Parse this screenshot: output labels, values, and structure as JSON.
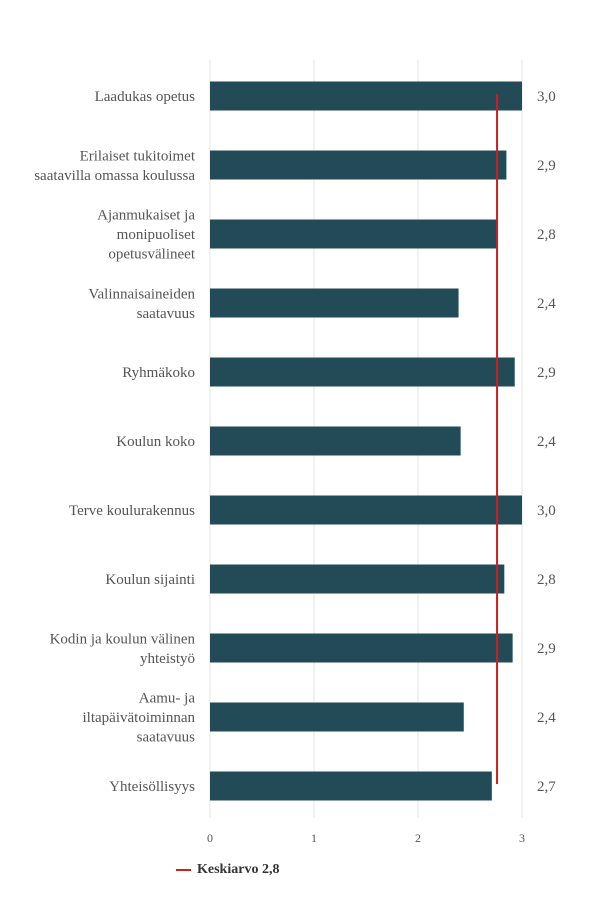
{
  "chart_data": {
    "type": "bar",
    "orientation": "horizontal",
    "categories": [
      [
        "Laadukas opetus"
      ],
      [
        "Erilaiset tukitoimet",
        "saatavilla omassa koulussa"
      ],
      [
        "Ajanmukaiset ja",
        "monipuoliset",
        "opetusvälineet"
      ],
      [
        "Valinnaisaineiden",
        "saatavuus"
      ],
      [
        "Ryhmäkoko"
      ],
      [
        "Koulun koko"
      ],
      [
        "Terve koulurakennus"
      ],
      [
        "Koulun sijainti"
      ],
      [
        "Kodin ja koulun välinen",
        "yhteistyö"
      ],
      [
        "Aamu- ja",
        "iltapäivätoiminnan",
        "saatavuus"
      ],
      [
        "Yhteisöllisyys"
      ]
    ],
    "values": [
      3.0,
      2.85,
      2.76,
      2.39,
      2.93,
      2.41,
      3.0,
      2.83,
      2.91,
      2.44,
      2.71
    ],
    "value_labels": [
      "3,0",
      "2,9",
      "2,8",
      "2,4",
      "2,9",
      "2,4",
      "3,0",
      "2,8",
      "2,9",
      "2,4",
      "2,7"
    ],
    "xlim": [
      0,
      3
    ],
    "x_ticks": [
      "0",
      "1",
      "2",
      "3"
    ],
    "grid": true,
    "bar_color": "#234b57",
    "reference_line": {
      "value": 2.76,
      "color": "#cc1f1f",
      "label": "Keskiarvo 2,8"
    },
    "legend_position": "bottom-left"
  }
}
